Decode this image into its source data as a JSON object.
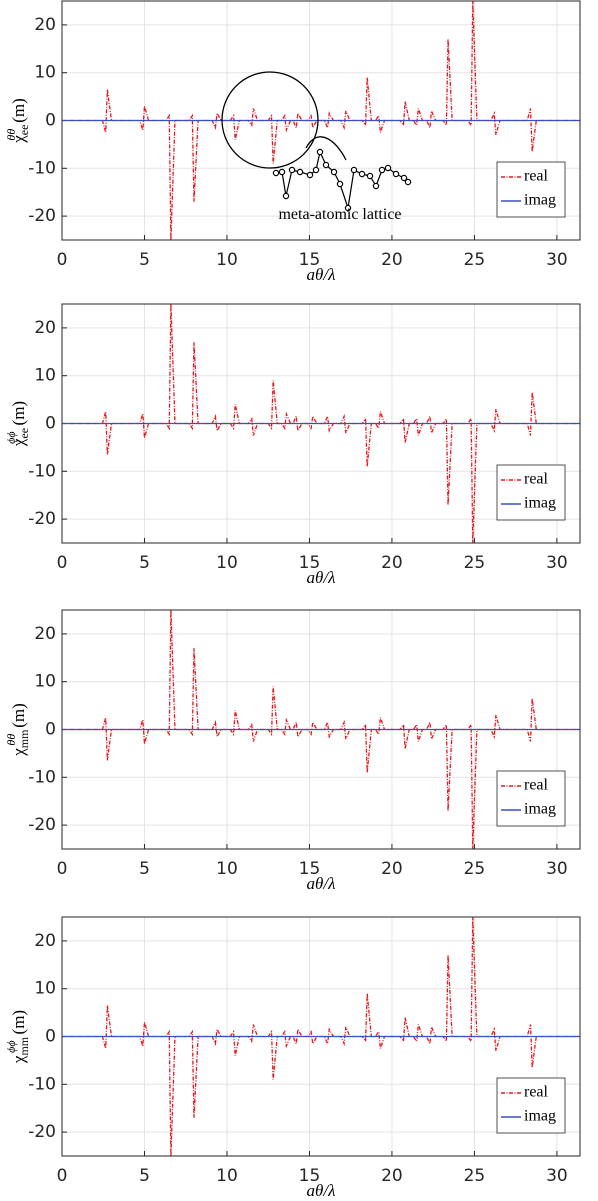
{
  "chart_data": [
    {
      "type": "line",
      "xlabel": "aθ/λ",
      "ylabel": {
        "base": "χ",
        "sub": "ee",
        "sup": "θθ",
        "unit": "(m)"
      },
      "xlim": [
        0,
        31.4
      ],
      "ylim": [
        -25,
        25
      ],
      "xticks": [
        0,
        5,
        10,
        15,
        20,
        25,
        30
      ],
      "yticks": [
        -20,
        -10,
        0,
        10,
        20
      ],
      "grid": true,
      "legend": "lower right",
      "annotation": "meta-atomic lattice",
      "series": [
        {
          "name": "real",
          "color": "#e8161c",
          "x": [
            0,
            2.45,
            2.65,
            2.75,
            3.0,
            4.7,
            4.9,
            5.0,
            5.25,
            6.3,
            6.5,
            6.6,
            6.85,
            7.7,
            7.9,
            8.0,
            8.25,
            9.1,
            9.3,
            9.4,
            9.65,
            10.2,
            10.4,
            10.5,
            10.75,
            11.3,
            11.5,
            11.6,
            11.85,
            12.5,
            12.7,
            12.8,
            13.05,
            13.3,
            13.5,
            13.6,
            13.85,
            14.0,
            14.2,
            14.3,
            14.55,
            14.9,
            15.1,
            15.2,
            15.45,
            15.9,
            16.1,
            16.2,
            16.45,
            16.9,
            17.1,
            17.2,
            17.45,
            18.2,
            18.4,
            18.5,
            18.75,
            19.0,
            19.2,
            19.3,
            19.55,
            20.5,
            20.7,
            20.8,
            21.05,
            21.3,
            21.5,
            21.6,
            21.85,
            22.1,
            22.3,
            22.4,
            22.65,
            23.1,
            23.3,
            23.4,
            23.65,
            24.6,
            24.8,
            24.9,
            25.15,
            26.0,
            26.2,
            26.3,
            26.55,
            28.2,
            28.4,
            28.5,
            28.75,
            31.4
          ],
          "values": [
            0,
            0,
            -2.5,
            6.5,
            0,
            0,
            -2,
            3,
            0,
            0,
            1,
            -25,
            0,
            0,
            1,
            -17,
            0,
            0,
            -1.5,
            1.5,
            0,
            0,
            1,
            -4,
            0,
            0,
            -1,
            2.5,
            0,
            0,
            1,
            -9,
            0,
            0,
            1,
            -2,
            0,
            0,
            -1.5,
            1.5,
            0,
            0,
            1,
            -1.5,
            0,
            0,
            -1.5,
            1.5,
            0,
            0,
            -1.5,
            2,
            0,
            0,
            -1,
            9,
            0,
            0,
            1,
            -2.5,
            0,
            0,
            -1,
            4,
            0,
            0,
            -1,
            2.5,
            0,
            0,
            -1.5,
            2,
            0,
            0,
            -1,
            17,
            0,
            0,
            -1,
            25,
            0,
            0,
            1.5,
            -3,
            0,
            0,
            2.5,
            -6.5,
            0,
            0
          ]
        },
        {
          "name": "imag",
          "color": "#3a4fc4",
          "x": [
            0,
            31.4
          ],
          "values": [
            0,
            0
          ]
        }
      ]
    },
    {
      "type": "line",
      "xlabel": "aθ/λ",
      "ylabel": {
        "base": "χ",
        "sub": "ee",
        "sup": "ϕϕ",
        "unit": "(m)"
      },
      "xlim": [
        0,
        31.4
      ],
      "ylim": [
        -25,
        25
      ],
      "xticks": [
        0,
        5,
        10,
        15,
        20,
        25,
        30
      ],
      "yticks": [
        -20,
        -10,
        0,
        10,
        20
      ],
      "grid": true,
      "legend": "lower right",
      "series": [
        {
          "name": "real",
          "color": "#e8161c",
          "x": [
            0,
            2.45,
            2.65,
            2.75,
            3.0,
            4.7,
            4.9,
            5.0,
            5.25,
            6.3,
            6.5,
            6.6,
            6.85,
            7.7,
            7.9,
            8.0,
            8.25,
            9.1,
            9.3,
            9.4,
            9.65,
            10.2,
            10.4,
            10.5,
            10.75,
            11.3,
            11.5,
            11.6,
            11.85,
            12.5,
            12.7,
            12.8,
            13.05,
            13.3,
            13.5,
            13.6,
            13.85,
            14.0,
            14.2,
            14.3,
            14.55,
            14.9,
            15.1,
            15.2,
            15.45,
            15.9,
            16.1,
            16.2,
            16.45,
            16.9,
            17.1,
            17.2,
            17.45,
            18.2,
            18.4,
            18.5,
            18.75,
            19.0,
            19.2,
            19.3,
            19.55,
            20.5,
            20.7,
            20.8,
            21.05,
            21.3,
            21.5,
            21.6,
            21.85,
            22.1,
            22.3,
            22.4,
            22.65,
            23.1,
            23.3,
            23.4,
            23.65,
            24.6,
            24.8,
            24.9,
            25.15,
            26.0,
            26.2,
            26.3,
            26.55,
            28.2,
            28.4,
            28.5,
            28.75,
            31.4
          ],
          "values": [
            0,
            0,
            2.5,
            -6.5,
            0,
            0,
            2,
            -3,
            0,
            0,
            -1,
            25,
            0,
            0,
            -1,
            17,
            0,
            0,
            1.5,
            -1.5,
            0,
            0,
            -1,
            4,
            0,
            0,
            1,
            -2.5,
            0,
            0,
            -1,
            9,
            0,
            0,
            -1,
            2,
            0,
            0,
            1.5,
            -1.5,
            0,
            0,
            -1,
            1.5,
            0,
            0,
            1.5,
            -1.5,
            0,
            0,
            1.5,
            -2,
            0,
            0,
            1,
            -9,
            0,
            0,
            -1,
            2.5,
            0,
            0,
            1,
            -4,
            0,
            0,
            1,
            -2.5,
            0,
            0,
            1.5,
            -2,
            0,
            0,
            1,
            -17,
            0,
            0,
            1,
            -25,
            0,
            0,
            -1.5,
            3,
            0,
            0,
            -2.5,
            6.5,
            0,
            0
          ]
        },
        {
          "name": "imag",
          "color": "#3a4fc4",
          "x": [
            0,
            31.4
          ],
          "values": [
            0,
            0
          ]
        }
      ]
    },
    {
      "type": "line",
      "xlabel": "aθ/λ",
      "ylabel": {
        "base": "χ",
        "sub": "mm",
        "sup": "θθ",
        "unit": "(m)"
      },
      "xlim": [
        0,
        31.4
      ],
      "ylim": [
        -25,
        25
      ],
      "xticks": [
        0,
        5,
        10,
        15,
        20,
        25,
        30
      ],
      "yticks": [
        -20,
        -10,
        0,
        10,
        20
      ],
      "grid": true,
      "legend": "lower right",
      "series": [
        {
          "name": "real",
          "color": "#e8161c",
          "x": [
            0,
            2.45,
            2.65,
            2.75,
            3.0,
            4.7,
            4.9,
            5.0,
            5.25,
            6.3,
            6.5,
            6.6,
            6.85,
            7.7,
            7.9,
            8.0,
            8.25,
            9.1,
            9.3,
            9.4,
            9.65,
            10.2,
            10.4,
            10.5,
            10.75,
            11.3,
            11.5,
            11.6,
            11.85,
            12.5,
            12.7,
            12.8,
            13.05,
            13.3,
            13.5,
            13.6,
            13.85,
            14.0,
            14.2,
            14.3,
            14.55,
            14.9,
            15.1,
            15.2,
            15.45,
            15.9,
            16.1,
            16.2,
            16.45,
            16.9,
            17.1,
            17.2,
            17.45,
            18.2,
            18.4,
            18.5,
            18.75,
            19.0,
            19.2,
            19.3,
            19.55,
            20.5,
            20.7,
            20.8,
            21.05,
            21.3,
            21.5,
            21.6,
            21.85,
            22.1,
            22.3,
            22.4,
            22.65,
            23.1,
            23.3,
            23.4,
            23.65,
            24.6,
            24.8,
            24.9,
            25.15,
            26.0,
            26.2,
            26.3,
            26.55,
            28.2,
            28.4,
            28.5,
            28.75,
            31.4
          ],
          "values": [
            0,
            0,
            2.5,
            -6.5,
            0,
            0,
            2,
            -3,
            0,
            0,
            -1,
            25,
            0,
            0,
            -1,
            17,
            0,
            0,
            1.5,
            -1.5,
            0,
            0,
            -1,
            4,
            0,
            0,
            1,
            -2.5,
            0,
            0,
            -1,
            9,
            0,
            0,
            -1,
            2,
            0,
            0,
            1.5,
            -1.5,
            0,
            0,
            -1,
            1.5,
            0,
            0,
            1.5,
            -1.5,
            0,
            0,
            1.5,
            -2,
            0,
            0,
            1,
            -9,
            0,
            0,
            -1,
            2.5,
            0,
            0,
            1,
            -4,
            0,
            0,
            1,
            -2.5,
            0,
            0,
            1.5,
            -2,
            0,
            0,
            1,
            -17,
            0,
            0,
            1,
            -25,
            0,
            0,
            -1.5,
            3,
            0,
            0,
            -2.5,
            6.5,
            0,
            0
          ]
        },
        {
          "name": "imag",
          "color": "#3a4fc4",
          "x": [
            0,
            31.4
          ],
          "values": [
            0,
            0
          ]
        }
      ]
    },
    {
      "type": "line",
      "xlabel": "aθ/λ",
      "ylabel": {
        "base": "χ",
        "sub": "mm",
        "sup": "ϕϕ",
        "unit": "(m)"
      },
      "xlim": [
        0,
        31.4
      ],
      "ylim": [
        -25,
        25
      ],
      "xticks": [
        0,
        5,
        10,
        15,
        20,
        25,
        30
      ],
      "yticks": [
        -20,
        -10,
        0,
        10,
        20
      ],
      "grid": true,
      "legend": "lower right",
      "series": [
        {
          "name": "real",
          "color": "#e8161c",
          "x": [
            0,
            2.45,
            2.65,
            2.75,
            3.0,
            4.7,
            4.9,
            5.0,
            5.25,
            6.3,
            6.5,
            6.6,
            6.85,
            7.7,
            7.9,
            8.0,
            8.25,
            9.1,
            9.3,
            9.4,
            9.65,
            10.2,
            10.4,
            10.5,
            10.75,
            11.3,
            11.5,
            11.6,
            11.85,
            12.5,
            12.7,
            12.8,
            13.05,
            13.3,
            13.5,
            13.6,
            13.85,
            14.0,
            14.2,
            14.3,
            14.55,
            14.9,
            15.1,
            15.2,
            15.45,
            15.9,
            16.1,
            16.2,
            16.45,
            16.9,
            17.1,
            17.2,
            17.45,
            18.2,
            18.4,
            18.5,
            18.75,
            19.0,
            19.2,
            19.3,
            19.55,
            20.5,
            20.7,
            20.8,
            21.05,
            21.3,
            21.5,
            21.6,
            21.85,
            22.1,
            22.3,
            22.4,
            22.65,
            23.1,
            23.3,
            23.4,
            23.65,
            24.6,
            24.8,
            24.9,
            25.15,
            26.0,
            26.2,
            26.3,
            26.55,
            28.2,
            28.4,
            28.5,
            28.75,
            31.4
          ],
          "values": [
            0,
            0,
            -2.5,
            6.5,
            0,
            0,
            -2,
            3,
            0,
            0,
            1,
            -25,
            0,
            0,
            1,
            -17,
            0,
            0,
            -1.5,
            1.5,
            0,
            0,
            1,
            -4,
            0,
            0,
            -1,
            2.5,
            0,
            0,
            1,
            -9,
            0,
            0,
            1,
            -2,
            0,
            0,
            -1.5,
            1.5,
            0,
            0,
            1,
            -1.5,
            0,
            0,
            -1.5,
            1.5,
            0,
            0,
            -1.5,
            2,
            0,
            0,
            -1,
            9,
            0,
            0,
            1,
            -2.5,
            0,
            0,
            -1,
            4,
            0,
            0,
            -1,
            2.5,
            0,
            0,
            -1.5,
            2,
            0,
            0,
            -1,
            17,
            0,
            0,
            -1,
            25,
            0,
            0,
            1.5,
            -3,
            0,
            0,
            2.5,
            -6.5,
            0,
            0
          ]
        },
        {
          "name": "imag",
          "color": "#3a4fc4",
          "x": [
            0,
            31.4
          ],
          "values": [
            0,
            0
          ]
        }
      ]
    }
  ]
}
